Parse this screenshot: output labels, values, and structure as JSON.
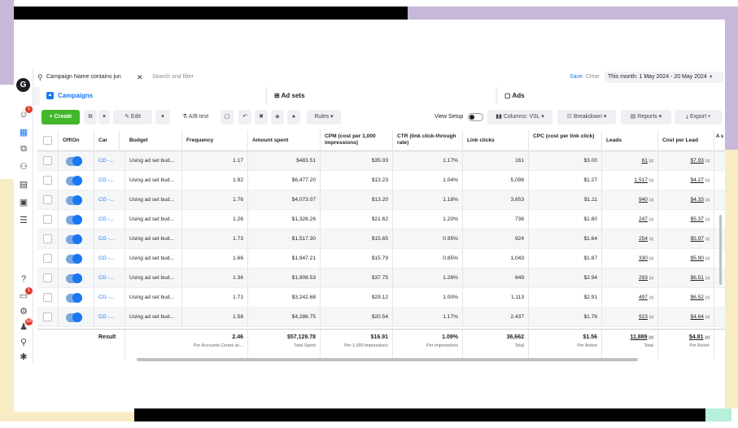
{
  "filter": {
    "chip": "Campaign Name contains jun",
    "placeholder": "Search and filter",
    "save": "Save",
    "clear": "Clear",
    "date_range": "This month: 1 May 2024 - 20 May 2024"
  },
  "tabs": [
    "Campaigns",
    "Ad sets",
    "Ads"
  ],
  "toolbar": {
    "create": "Create",
    "edit": "Edit",
    "ab_test": "A/B test",
    "rules": "Rules",
    "view_setup": "View Setup",
    "columns": "Columns: VSL",
    "breakdown": "Breakdown",
    "reports": "Reports",
    "export": "Export"
  },
  "rail": {
    "logo": "G",
    "badge_1": "1",
    "badge_2": "1",
    "badge_3": "59"
  },
  "columns": [
    "Off/On",
    "Car",
    "Budget",
    "Frequency",
    "Amount spent",
    "CPM (cost per 1,000 impressions)",
    "CTR (link click-through rate)",
    "Link clicks",
    "CPC (cost per link click)",
    "Leads",
    "Cost per Lead",
    "A s"
  ],
  "rows": [
    {
      "name": "CG -...",
      "budget": "Using ad set bud...",
      "frequency": "1.17",
      "spent": "$483.51",
      "cpm": "$35.03",
      "ctr": "1.17%",
      "clicks": "161",
      "cpc": "$3.00",
      "leads": "61",
      "cpl": "$7.93"
    },
    {
      "name": "CG -...",
      "budget": "Using ad set bud...",
      "frequency": "1.92",
      "spent": "$6,477.20",
      "cpm": "$13.23",
      "ctr": "1.04%",
      "clicks": "5,098",
      "cpc": "$1.27",
      "leads": "1,517",
      "cpl": "$4.27"
    },
    {
      "name": "CG -...",
      "budget": "Using ad set bud...",
      "frequency": "1.76",
      "spent": "$4,073.07",
      "cpm": "$13.20",
      "ctr": "1.18%",
      "clicks": "3,653",
      "cpc": "$1.11",
      "leads": "940",
      "cpl": "$4.33"
    },
    {
      "name": "CG -...",
      "budget": "Using ad set bud...",
      "frequency": "1.26",
      "spent": "$1,326.26",
      "cpm": "$21.62",
      "ctr": "1.20%",
      "clicks": "736",
      "cpc": "$1.80",
      "leads": "247",
      "cpl": "$5.37"
    },
    {
      "name": "CG -...",
      "budget": "Using ad set bud...",
      "frequency": "1.73",
      "spent": "$1,517.30",
      "cpm": "$15.65",
      "ctr": "0.95%",
      "clicks": "924",
      "cpc": "$1.64",
      "leads": "254",
      "cpl": "$5.97"
    },
    {
      "name": "CG -...",
      "budget": "Using ad set bud...",
      "frequency": "1.66",
      "spent": "$1,947.21",
      "cpm": "$15.79",
      "ctr": "0.85%",
      "clicks": "1,043",
      "cpc": "$1.87",
      "leads": "330",
      "cpl": "$5.90"
    },
    {
      "name": "CG -...",
      "budget": "Using ad set bud...",
      "frequency": "1.36",
      "spent": "$1,908.53",
      "cpm": "$37.75",
      "ctr": "1.28%",
      "clicks": "649",
      "cpc": "$2.94",
      "leads": "293",
      "cpl": "$6.51"
    },
    {
      "name": "CG -...",
      "budget": "Using ad set bud...",
      "frequency": "1.71",
      "spent": "$3,242.68",
      "cpm": "$29.12",
      "ctr": "1.00%",
      "clicks": "1,113",
      "cpc": "$2.91",
      "leads": "497",
      "cpl": "$6.52"
    },
    {
      "name": "CG -...",
      "budget": "Using ad set bud...",
      "frequency": "1.58",
      "spent": "$4,286.75",
      "cpm": "$20.54",
      "ctr": "1.17%",
      "clicks": "2,437",
      "cpc": "$1.76",
      "leads": "923",
      "cpl": "$4.64"
    }
  ],
  "footnote_mark": "[2]",
  "totals": {
    "label": "Result",
    "frequency": "2.46",
    "frequency_sub": "Per Accounts Centre ac...",
    "spent": "$57,129.78",
    "spent_sub": "Total Spent",
    "cpm": "$16.91",
    "cpm_sub": "Per 1,000 Impressions",
    "ctr": "1.09%",
    "ctr_sub": "Per Impressions",
    "clicks": "36,662",
    "clicks_sub": "Total",
    "cpc": "$1.56",
    "cpc_sub": "Per Action",
    "leads": "11,889",
    "leads_sub": "Total",
    "cpl": "$4.81",
    "cpl_sub": "Per Action"
  },
  "colors": {
    "accent": "#1877f2",
    "create": "#42b72a",
    "lavender": "#c7b8d9",
    "cream": "#f7ecc4"
  }
}
